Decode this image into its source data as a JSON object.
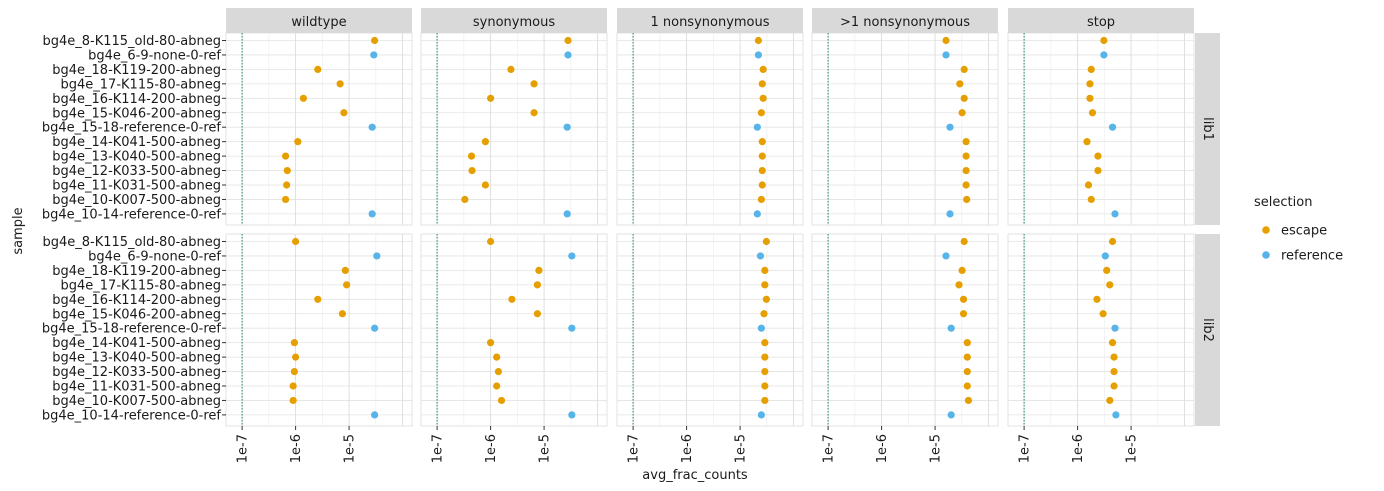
{
  "chart_data": {
    "type": "scatter",
    "x_axis_label": "avg_frac_counts",
    "y_axis_label": "sample",
    "x_scale": "log10",
    "x_range": [
      5e-08,
      0.00015
    ],
    "x_ticks": [
      {
        "value": 1e-07,
        "label": "1e-7"
      },
      {
        "value": 1e-06,
        "label": "1e-6"
      },
      {
        "value": 1e-05,
        "label": "1e-5"
      }
    ],
    "reference_line_x": 1e-07,
    "columns": [
      "wildtype",
      "synonymous",
      "1 nonsynonymous",
      ">1 nonsynonymous",
      "stop"
    ],
    "rows": [
      "lib1",
      "lib2"
    ],
    "samples": [
      "bg4e_8-K115_old-80-abneg",
      "bg4e_6-9-none-0-ref",
      "bg4e_18-K119-200-abneg",
      "bg4e_17-K115-80-abneg",
      "bg4e_16-K114-200-abneg",
      "bg4e_15-K046-200-abneg",
      "bg4e_15-18-reference-0-ref",
      "bg4e_14-K041-500-abneg",
      "bg4e_13-K040-500-abneg",
      "bg4e_12-K033-500-abneg",
      "bg4e_11-K031-500-abneg",
      "bg4e_10-K007-500-abneg",
      "bg4e_10-14-reference-0-ref"
    ],
    "sample_selection": [
      "escape",
      "reference",
      "escape",
      "escape",
      "escape",
      "escape",
      "reference",
      "escape",
      "escape",
      "escape",
      "escape",
      "escape",
      "reference"
    ],
    "legend": {
      "title": "selection",
      "position": "right",
      "items": [
        {
          "label": "escape",
          "color": "#E69F00"
        },
        {
          "label": "reference",
          "color": "#56B4E9"
        }
      ]
    },
    "values": {
      "lib1": {
        "wildtype": [
          3e-05,
          2.9e-05,
          2.6e-06,
          6.8e-06,
          1.4e-06,
          8e-06,
          2.7e-05,
          1.1e-06,
          6.5e-07,
          7e-07,
          6.8e-07,
          6.5e-07,
          2.7e-05
        ],
        "synonymous": [
          2.8e-05,
          2.8e-05,
          2.4e-06,
          6.5e-06,
          1e-06,
          6.5e-06,
          2.7e-05,
          8e-07,
          4.4e-07,
          4.5e-07,
          8e-07,
          3.3e-07,
          2.7e-05
        ],
        "1 nonsynonymous": [
          2.2e-05,
          2.2e-05,
          2.7e-05,
          2.6e-05,
          2.7e-05,
          2.5e-05,
          2.1e-05,
          2.6e-05,
          2.6e-05,
          2.6e-05,
          2.6e-05,
          2.5e-05,
          2.1e-05
        ],
        ">1 nonsynonymous": [
          1.6e-05,
          1.6e-05,
          3.5e-05,
          2.9e-05,
          3.5e-05,
          3.2e-05,
          1.9e-05,
          3.8e-05,
          3.8e-05,
          3.8e-05,
          3.8e-05,
          3.9e-05,
          1.9e-05
        ],
        "stop": [
          3.1e-06,
          3.1e-06,
          1.8e-06,
          1.7e-06,
          1.7e-06,
          1.9e-06,
          4.5e-06,
          1.5e-06,
          2.4e-06,
          2.4e-06,
          1.6e-06,
          1.8e-06,
          5e-06
        ]
      },
      "lib2": {
        "wildtype": [
          1e-06,
          3.3e-05,
          8.5e-06,
          9e-06,
          2.6e-06,
          7.5e-06,
          3e-05,
          9.5e-07,
          1e-06,
          9.5e-07,
          9e-07,
          9e-07,
          3e-05
        ],
        "synonymous": [
          1e-06,
          3.3e-05,
          8e-06,
          7.5e-06,
          2.5e-06,
          7.5e-06,
          3.3e-05,
          1e-06,
          1.3e-06,
          1.4e-06,
          1.3e-06,
          1.6e-06,
          3.3e-05
        ],
        "1 nonsynonymous": [
          3.1e-05,
          2.4e-05,
          2.9e-05,
          2.9e-05,
          3.1e-05,
          2.8e-05,
          2.5e-05,
          2.9e-05,
          2.9e-05,
          2.9e-05,
          2.9e-05,
          2.9e-05,
          2.5e-05
        ],
        ">1 nonsynonymous": [
          3.5e-05,
          1.6e-05,
          3.2e-05,
          2.8e-05,
          3.4e-05,
          3.4e-05,
          2e-05,
          4e-05,
          4e-05,
          4e-05,
          4e-05,
          4.2e-05,
          2e-05
        ],
        "stop": [
          4.5e-06,
          3.3e-06,
          3.5e-06,
          4e-06,
          2.3e-06,
          3e-06,
          5e-06,
          4.5e-06,
          4.8e-06,
          4.8e-06,
          4.8e-06,
          4e-06,
          5.2e-06
        ]
      }
    }
  }
}
